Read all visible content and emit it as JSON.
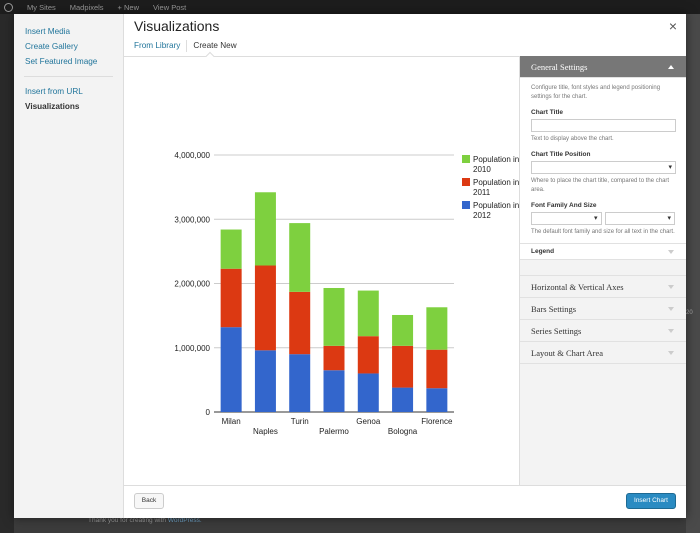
{
  "admin_bar": {
    "items": [
      "My Sites",
      "Madpixels",
      "+ New",
      "View Post"
    ]
  },
  "footer": {
    "text": "Thank you for creating with ",
    "link": "WordPress."
  },
  "background_right_text": "20",
  "menu": {
    "items": [
      {
        "label": "Insert Media"
      },
      {
        "label": "Create Gallery"
      },
      {
        "label": "Set Featured Image"
      },
      {
        "label": "Insert from URL"
      },
      {
        "label": "Visualizations",
        "active": true
      }
    ]
  },
  "frame": {
    "title": "Visualizations",
    "close": "×",
    "tabs": [
      {
        "label": "From Library"
      },
      {
        "label": "Create New",
        "active": true
      }
    ]
  },
  "sidebar": {
    "general_settings": {
      "title": "General Settings",
      "description": "Configure title, font styles and legend positioning settings for the chart.",
      "chart_title_label": "Chart Title",
      "chart_title_value": "",
      "chart_title_desc": "Text to display above the chart.",
      "title_position_label": "Chart Title Position",
      "title_position_value": "",
      "title_position_desc": "Where to place the chart title, compared to the chart area.",
      "font_label": "Font Family And Size",
      "font_family_value": "",
      "font_size_value": "",
      "font_desc": "The default font family and size for all text in the chart.",
      "legend_label": "Legend"
    },
    "sections": [
      "Horizontal & Vertical Axes",
      "Bars Settings",
      "Series Settings",
      "Layout & Chart Area"
    ]
  },
  "toolbar": {
    "back_label": "Back",
    "insert_label": "Insert Chart"
  },
  "colors": {
    "link": "#21759b",
    "primary": "#2a8bc2",
    "s2010": "#7ed03f",
    "s2011": "#dc3912",
    "s2012": "#3366cc"
  },
  "chart_data": {
    "type": "bar",
    "stacked": true,
    "categories": [
      "Milan",
      "Naples",
      "Turin",
      "Palermo",
      "Genoa",
      "Bologna",
      "Florence"
    ],
    "series": [
      {
        "name": "Population in 2012",
        "color": "#3366cc",
        "values": [
          1320000,
          960000,
          900000,
          650000,
          600000,
          380000,
          370000
        ]
      },
      {
        "name": "Population in 2011",
        "color": "#dc3912",
        "values": [
          910000,
          1320000,
          970000,
          380000,
          580000,
          650000,
          600000
        ]
      },
      {
        "name": "Population in 2010",
        "color": "#7ed03f",
        "values": [
          610000,
          1140000,
          1070000,
          900000,
          710000,
          480000,
          660000
        ]
      }
    ],
    "legend_order": [
      "Population in 2010",
      "Population in 2011",
      "Population in 2012"
    ],
    "y_ticks": [
      "0",
      "1,000,000",
      "2,000,000",
      "3,000,000",
      "4,000,000"
    ],
    "ylim": [
      0,
      4000000
    ],
    "grid": true,
    "legend_position": "right"
  }
}
